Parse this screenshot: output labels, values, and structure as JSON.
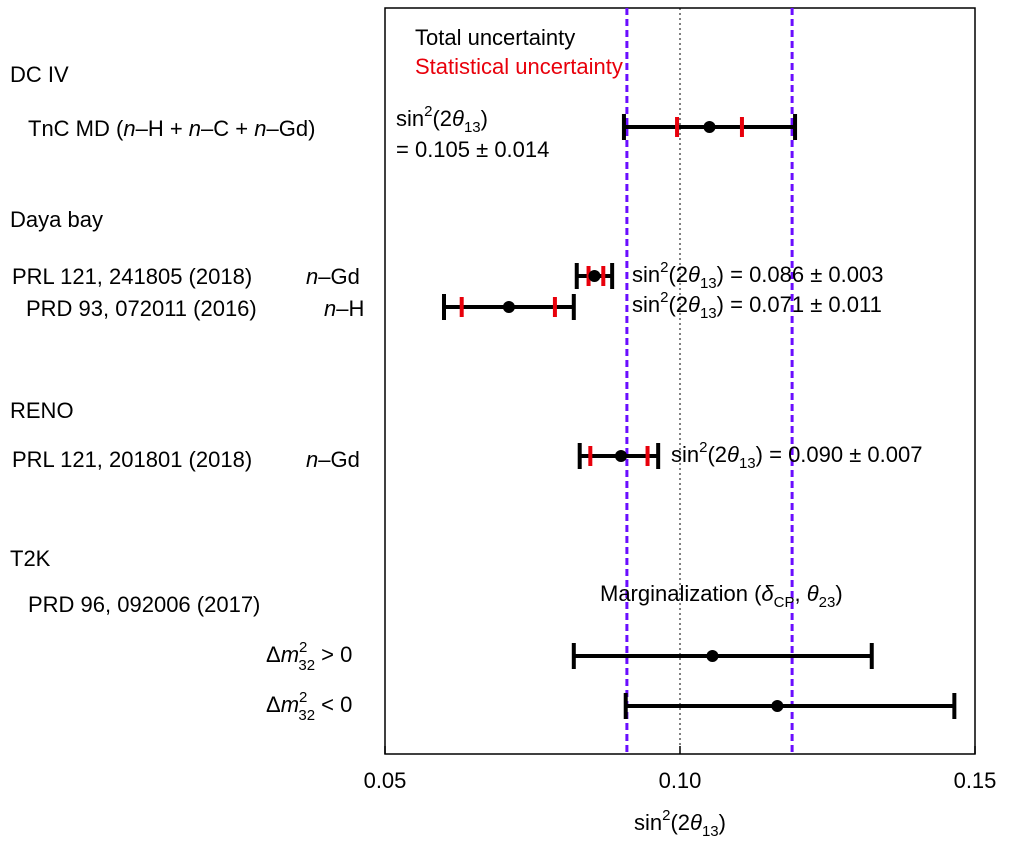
{
  "chart_data": {
    "type": "scatter",
    "subtype": "forest-plot with error bars",
    "xlabel": {
      "base": "sin",
      "sup": "2",
      "mid": "(2",
      "greek": "θ",
      "sub": "13",
      "end": ")"
    },
    "xlim": [
      0.05,
      0.15
    ],
    "xticks": [
      0.05,
      0.1,
      0.15
    ],
    "xtick_labels": [
      "0.05",
      "0.10",
      "0.15"
    ],
    "reference_line": 0.1,
    "band": {
      "lower": 0.091,
      "upper": 0.119,
      "color": "#6a0dff",
      "style": "dashed"
    },
    "legend": [
      {
        "label": "Total uncertainty",
        "color": "#000000"
      },
      {
        "label": "Statistical uncertainty",
        "color": "#e8000b"
      }
    ],
    "groups": [
      {
        "name": "DC IV",
        "row": 1
      },
      {
        "name": "Daya bay",
        "row": 3
      },
      {
        "name": "RENO",
        "row": 6
      },
      {
        "name": "T2K",
        "row": 8
      }
    ],
    "measurements": [
      {
        "label": "TnC MD (n–H + n–C + n–Gd)",
        "row": 2,
        "value": 0.105,
        "total": [
          0.0905,
          0.1195
        ],
        "stat": [
          0.0995,
          0.1105
        ],
        "annotation": "= 0.105 ± 0.014"
      },
      {
        "label": "PRL 121, 241805 (2018)",
        "suffix": "n–Gd",
        "row": 4,
        "value": 0.0855,
        "total": [
          0.0825,
          0.0885
        ],
        "stat": [
          0.0845,
          0.087
        ],
        "annotation": "= 0.086 ± 0.003"
      },
      {
        "label": "PRD 93, 072011 (2016)",
        "suffix": "n–H",
        "row": 5,
        "value": 0.071,
        "total": [
          0.06,
          0.082
        ],
        "stat": [
          0.063,
          0.0788
        ],
        "annotation": "= 0.071 ± 0.011"
      },
      {
        "label": "PRL 121, 201801 (2018)",
        "suffix": "n–Gd",
        "row": 7,
        "value": 0.09,
        "total": [
          0.083,
          0.0963
        ],
        "stat": [
          0.0848,
          0.0945
        ],
        "annotation": "= 0.090 ± 0.007"
      },
      {
        "label": "Δm²₃₂ > 0",
        "row": 11,
        "value": 0.1055,
        "total": [
          0.082,
          0.1325
        ],
        "stat": null,
        "annotation": ""
      },
      {
        "label": "Δm²₃₂ < 0",
        "row": 12,
        "value": 0.1165,
        "total": [
          0.0908,
          0.1465
        ],
        "stat": null,
        "annotation": ""
      }
    ],
    "t2k_reference": "PRD 96, 092006 (2017)",
    "t2k_note": "Marginalization (δ_CP, θ_23)"
  }
}
